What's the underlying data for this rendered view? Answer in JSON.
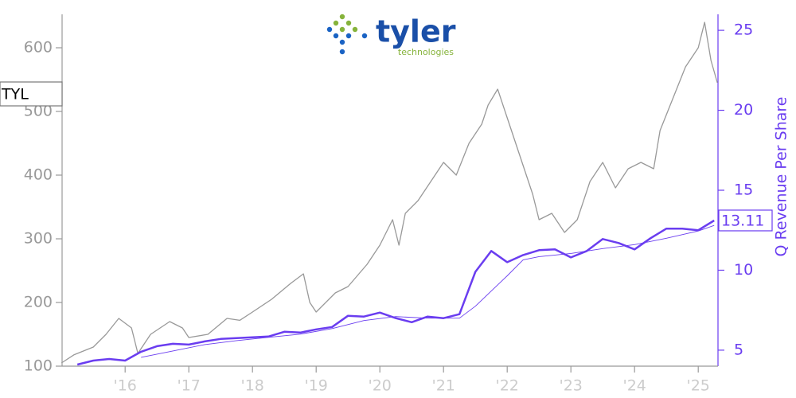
{
  "chart_data": {
    "type": "line",
    "logo_text": "tyler",
    "logo_subtext": "technologies",
    "y2label": "Q Revenue Per Share",
    "xlim": [
      2015.01,
      2025.31
    ],
    "xticks": [
      {
        "value": 2016,
        "label": "'16"
      },
      {
        "value": 2017,
        "label": "'17"
      },
      {
        "value": 2018,
        "label": "'18"
      },
      {
        "value": 2019,
        "label": "'19"
      },
      {
        "value": 2020,
        "label": "'20"
      },
      {
        "value": 2021,
        "label": "'21"
      },
      {
        "value": 2022,
        "label": "'22"
      },
      {
        "value": 2023,
        "label": "'23"
      },
      {
        "value": 2024,
        "label": "'24"
      },
      {
        "value": 2025,
        "label": "'25"
      }
    ],
    "ylim": [
      100,
      652.5
    ],
    "yticks": [
      100,
      200,
      300,
      400,
      500,
      600
    ],
    "y2lim": [
      4,
      26
    ],
    "y2ticks": [
      5,
      10,
      15,
      20,
      25
    ],
    "series": [
      {
        "name": "TYL",
        "color": "#999999",
        "width": 1.3,
        "x": [
          2015.0,
          2015.2,
          2015.5,
          2015.7,
          2015.9,
          2016.1,
          2016.2,
          2016.4,
          2016.7,
          2016.9,
          2017.0,
          2017.3,
          2017.6,
          2017.8,
          2018.0,
          2018.3,
          2018.6,
          2018.8,
          2018.9,
          2019.0,
          2019.3,
          2019.5,
          2019.8,
          2020.0,
          2020.2,
          2020.3,
          2020.4,
          2020.6,
          2020.8,
          2021.0,
          2021.2,
          2021.4,
          2021.6,
          2021.7,
          2021.85,
          2022.0,
          2022.2,
          2022.4,
          2022.5,
          2022.7,
          2022.9,
          2023.1,
          2023.3,
          2023.5,
          2023.7,
          2023.9,
          2024.1,
          2024.3,
          2024.4,
          2024.6,
          2024.8,
          2025.0,
          2025.1,
          2025.2,
          2025.3
        ],
        "values": [
          105,
          118,
          130,
          150,
          175,
          160,
          120,
          150,
          170,
          160,
          145,
          150,
          175,
          172,
          185,
          205,
          230,
          245,
          200,
          185,
          215,
          225,
          260,
          290,
          330,
          290,
          340,
          360,
          390,
          420,
          400,
          450,
          480,
          510,
          535,
          490,
          430,
          370,
          330,
          340,
          310,
          330,
          390,
          420,
          380,
          410,
          420,
          410,
          470,
          520,
          570,
          600,
          640,
          580,
          545
        ]
      },
      {
        "name": "Q Revenue Per Share",
        "axis": "y2",
        "color": "#6a3df0",
        "width": 2.5,
        "x": [
          2015.25,
          2015.5,
          2015.75,
          2016.0,
          2016.25,
          2016.5,
          2016.75,
          2017.0,
          2017.25,
          2017.5,
          2017.75,
          2018.0,
          2018.25,
          2018.5,
          2018.75,
          2019.0,
          2019.25,
          2019.5,
          2019.75,
          2020.0,
          2020.25,
          2020.5,
          2020.75,
          2021.0,
          2021.25,
          2021.5,
          2021.75,
          2022.0,
          2022.25,
          2022.5,
          2022.75,
          2023.0,
          2023.25,
          2023.5,
          2023.75,
          2024.0,
          2024.25,
          2024.5,
          2024.75,
          2025.0,
          2025.25
        ],
        "values": [
          4.1,
          4.35,
          4.45,
          4.35,
          4.9,
          5.25,
          5.4,
          5.35,
          5.55,
          5.7,
          5.75,
          5.8,
          5.85,
          6.15,
          6.1,
          6.3,
          6.45,
          7.15,
          7.1,
          7.35,
          7.0,
          6.75,
          7.1,
          7.0,
          7.25,
          9.9,
          11.2,
          10.5,
          10.95,
          11.25,
          11.3,
          10.8,
          11.2,
          11.95,
          11.7,
          11.3,
          12.0,
          12.6,
          12.6,
          12.5,
          13.11
        ],
        "value_labels": [
          null,
          null,
          null,
          null,
          null,
          null,
          null,
          null,
          null,
          null,
          null,
          null,
          null,
          null,
          null,
          null,
          null,
          null,
          null,
          null,
          null,
          null,
          null,
          null,
          null,
          null,
          null,
          null,
          null,
          null,
          null,
          null,
          null,
          null,
          null,
          null,
          null,
          null,
          null,
          null,
          "13.11"
        ]
      },
      {
        "axis": "y2",
        "color": "#6a3df0",
        "width": 0.9,
        "x": [
          2016.25,
          2016.75,
          2017.25,
          2017.75,
          2018.25,
          2018.75,
          2019.25,
          2019.75,
          2020.25,
          2020.75,
          2021.25,
          2021.5,
          2021.75,
          2022.0,
          2022.25,
          2022.5,
          2023.0,
          2023.5,
          2024.0,
          2024.5,
          2025.0,
          2025.25
        ],
        "values": [
          4.55,
          4.95,
          5.35,
          5.6,
          5.8,
          6.0,
          6.35,
          6.85,
          7.1,
          7.0,
          7.0,
          7.75,
          8.7,
          9.65,
          10.65,
          10.85,
          11.05,
          11.35,
          11.6,
          12.0,
          12.45,
          12.8
        ]
      }
    ]
  }
}
